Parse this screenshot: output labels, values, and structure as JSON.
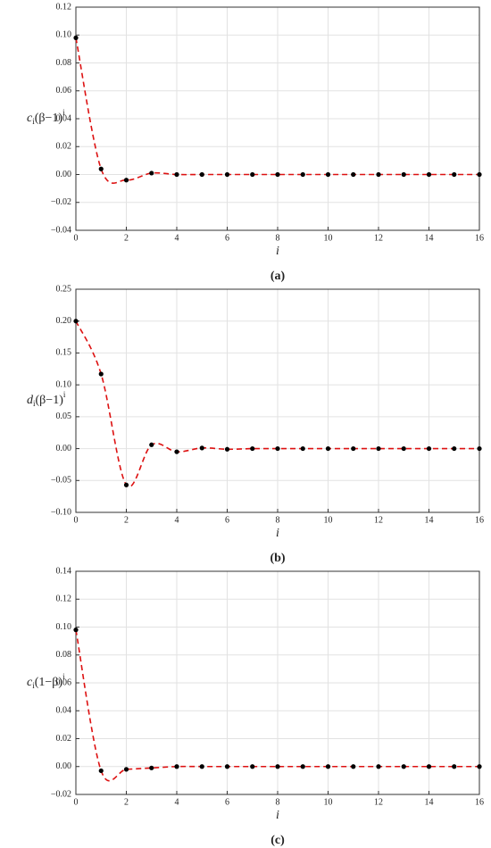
{
  "chart_data": [
    {
      "type": "scatter",
      "caption": "(a)",
      "x_label": "i",
      "y_label": {
        "base": "c",
        "sub": "i",
        "mid": "(β−1)",
        "sup": "i"
      },
      "x": [
        0,
        1,
        2,
        3,
        4,
        5,
        6,
        7,
        8,
        9,
        10,
        11,
        12,
        13,
        14,
        15,
        16
      ],
      "series": [
        {
          "color": "#000000",
          "line_color": "#dd1111",
          "values": [
            0.098,
            0.004,
            -0.004,
            0.001,
            0,
            0,
            0,
            0,
            0,
            0,
            0,
            0,
            0,
            0,
            0,
            0,
            0
          ]
        }
      ],
      "xlim": [
        0,
        16
      ],
      "xticks": [
        0,
        2,
        4,
        6,
        8,
        10,
        12,
        14,
        16
      ],
      "ylim": [
        -0.04,
        0.12
      ],
      "yticks": [
        {
          "value": -0.04,
          "label": "−0.04"
        },
        {
          "value": -0.02,
          "label": "−0.02"
        },
        {
          "value": 0,
          "label": "0.00"
        },
        0.02,
        0.04,
        0.06,
        0.08,
        {
          "value": 0.1,
          "label": "0.10"
        },
        0.12
      ],
      "grid": true
    },
    {
      "type": "scatter",
      "caption": "(b)",
      "x_label": "i",
      "y_label": {
        "base": "d",
        "sub": "i",
        "mid": "(β−1)",
        "sup": "i"
      },
      "x": [
        0,
        1,
        2,
        3,
        4,
        5,
        6,
        7,
        8,
        9,
        10,
        11,
        12,
        13,
        14,
        15,
        16
      ],
      "series": [
        {
          "color": "#000000",
          "line_color": "#dd1111",
          "values": [
            0.2,
            0.117,
            -0.057,
            0.006,
            -0.005,
            0.001,
            -0.001,
            0,
            0,
            0,
            0,
            0,
            0,
            0,
            0,
            0,
            0
          ]
        }
      ],
      "xlim": [
        0,
        16
      ],
      "xticks": [
        0,
        2,
        4,
        6,
        8,
        10,
        12,
        14,
        16
      ],
      "ylim": [
        -0.1,
        0.25
      ],
      "yticks": [
        {
          "value": -0.1,
          "label": "−0.10"
        },
        {
          "value": -0.05,
          "label": "−0.05"
        },
        {
          "value": 0,
          "label": "0.00"
        },
        0.05,
        {
          "value": 0.1,
          "label": "0.10"
        },
        0.15,
        {
          "value": 0.2,
          "label": "0.20"
        },
        0.25
      ],
      "grid": true
    },
    {
      "type": "scatter",
      "caption": "(c)",
      "x_label": "i",
      "y_label": {
        "base": "c",
        "sub": "i",
        "mid": "(1−β)",
        "sup": "i"
      },
      "x": [
        0,
        1,
        2,
        3,
        4,
        5,
        6,
        7,
        8,
        9,
        10,
        11,
        12,
        13,
        14,
        15,
        16
      ],
      "series": [
        {
          "color": "#000000",
          "line_color": "#dd1111",
          "values": [
            0.098,
            -0.003,
            -0.002,
            -0.001,
            0,
            0,
            0,
            0,
            0,
            0,
            0,
            0,
            0,
            0,
            0,
            0,
            0
          ]
        }
      ],
      "xlim": [
        0,
        16
      ],
      "xticks": [
        0,
        2,
        4,
        6,
        8,
        10,
        12,
        14,
        16
      ],
      "ylim": [
        -0.02,
        0.14
      ],
      "yticks": [
        {
          "value": -0.02,
          "label": "−0.02"
        },
        {
          "value": 0,
          "label": "0.00"
        },
        0.02,
        0.04,
        0.06,
        0.08,
        {
          "value": 0.1,
          "label": "0.10"
        },
        0.12,
        0.14
      ],
      "grid": true
    }
  ]
}
